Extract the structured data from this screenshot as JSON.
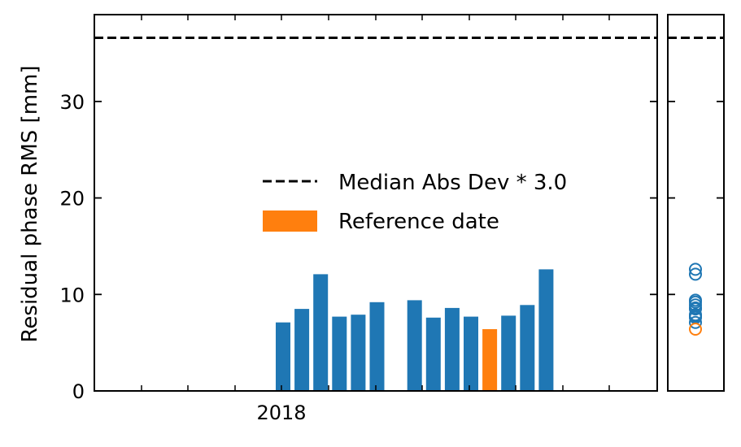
{
  "chart_data": [
    {
      "type": "bar",
      "ylabel": "Residual phase RMS [mm]",
      "ylim": [
        0,
        39
      ],
      "yticks": [
        0,
        10,
        20,
        30
      ],
      "xtick_labels": [
        "2018"
      ],
      "bars": [
        {
          "index": 0,
          "value": 7.1,
          "reference": false
        },
        {
          "index": 1,
          "value": 8.5,
          "reference": false
        },
        {
          "index": 2,
          "value": 12.1,
          "reference": false
        },
        {
          "index": 3,
          "value": 7.7,
          "reference": false
        },
        {
          "index": 4,
          "value": 7.9,
          "reference": false
        },
        {
          "index": 5,
          "value": 9.2,
          "reference": false
        },
        {
          "index": 7,
          "value": 9.4,
          "reference": false
        },
        {
          "index": 8,
          "value": 7.6,
          "reference": false
        },
        {
          "index": 9,
          "value": 8.6,
          "reference": false
        },
        {
          "index": 10,
          "value": 7.7,
          "reference": false
        },
        {
          "index": 11,
          "value": 6.4,
          "reference": true
        },
        {
          "index": 12,
          "value": 7.8,
          "reference": false
        },
        {
          "index": 13,
          "value": 8.9,
          "reference": false
        },
        {
          "index": 14,
          "value": 12.6,
          "reference": false
        }
      ],
      "threshold": 36.6,
      "legend": {
        "placement": "center",
        "entries": [
          {
            "label": "Median Abs Dev * 3.0",
            "style": "dashed-line"
          },
          {
            "label": "Reference date",
            "style": "patch"
          }
        ]
      },
      "colors": {
        "bar": "#1f77b4",
        "reference": "#ff7f0e",
        "threshold": "#000000"
      }
    },
    {
      "type": "scatter",
      "marker": "open-circle",
      "values": [
        12.6,
        12.1,
        9.4,
        9.2,
        8.9,
        8.6,
        8.5,
        7.9,
        7.8,
        7.7,
        7.7,
        7.6,
        7.1
      ],
      "reference_value": 6.4,
      "ylim": [
        0,
        39
      ],
      "threshold": 36.6,
      "colors": {
        "point": "#1f77b4",
        "reference": "#ff7f0e"
      }
    }
  ]
}
